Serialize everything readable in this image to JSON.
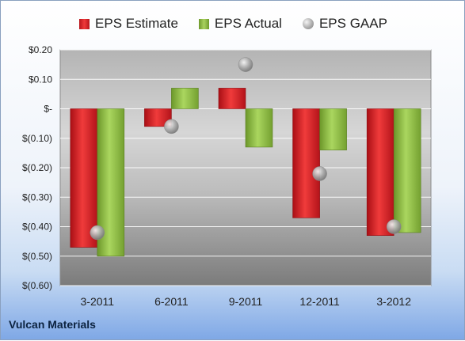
{
  "legend": {
    "estimate": "EPS Estimate",
    "actual": "EPS Actual",
    "gaap": "EPS GAAP"
  },
  "company": "Vulcan Materials",
  "colors": {
    "estimate": "#d61f26",
    "actual": "#8cbb45",
    "gaap": "#b0b0b0"
  },
  "chart_data": {
    "type": "bar",
    "categories": [
      "3-2011",
      "6-2011",
      "9-2011",
      "12-2011",
      "3-2012"
    ],
    "series": [
      {
        "name": "EPS Estimate",
        "values": [
          -0.47,
          -0.06,
          0.07,
          -0.37,
          -0.43
        ]
      },
      {
        "name": "EPS Actual",
        "values": [
          -0.5,
          0.07,
          -0.13,
          -0.14,
          -0.42
        ]
      },
      {
        "name": "EPS GAAP",
        "values": [
          -0.42,
          -0.06,
          0.15,
          -0.22,
          -0.4
        ]
      }
    ],
    "ylim": [
      -0.6,
      0.2
    ],
    "yticks": [
      0.2,
      0.1,
      0.0,
      -0.1,
      -0.2,
      -0.3,
      -0.4,
      -0.5,
      -0.6
    ],
    "ytick_labels": [
      "$0.20",
      "$0.10",
      "$-",
      "$(0.10)",
      "$(0.20)",
      "$(0.30)",
      "$(0.40)",
      "$(0.50)",
      "$(0.60)"
    ],
    "grid": true,
    "legend_position": "top"
  }
}
